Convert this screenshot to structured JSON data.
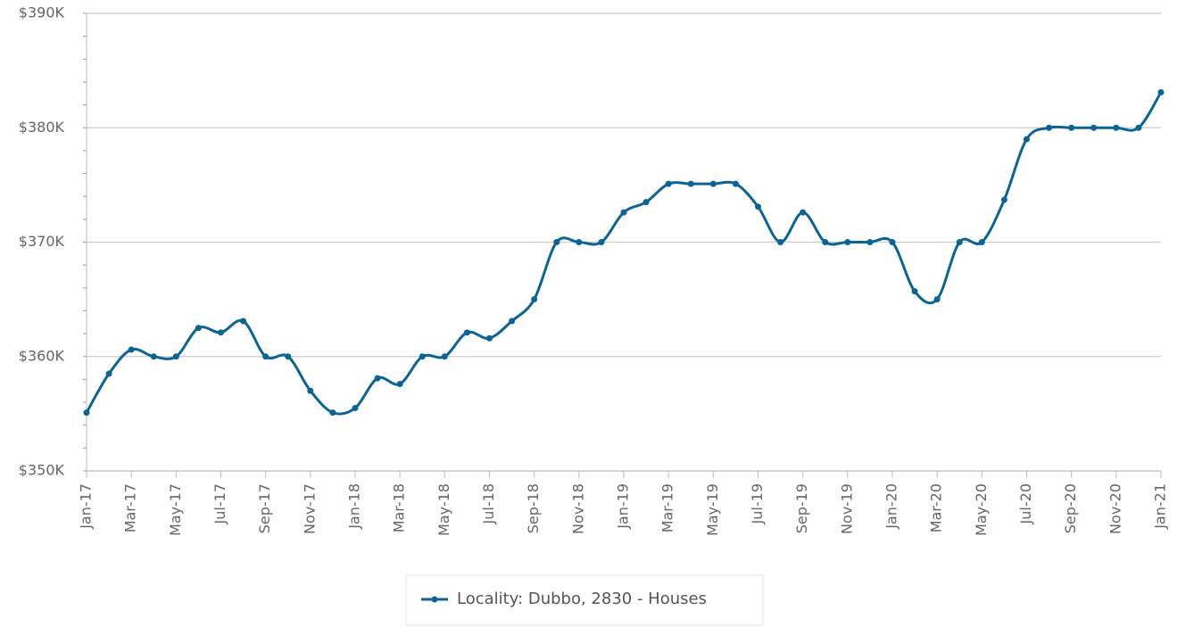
{
  "chart_data": {
    "type": "line",
    "categories": [
      "Jan-17",
      null,
      "Mar-17",
      null,
      "May-17",
      null,
      "Jul-17",
      null,
      "Sep-17",
      null,
      "Nov-17",
      null,
      "Jan-18",
      null,
      "Mar-18",
      null,
      "May-18",
      null,
      "Jul-18",
      null,
      "Sep-18",
      null,
      "Nov-18",
      null,
      "Jan-19",
      null,
      "Mar-19",
      null,
      "May-19",
      null,
      "Jul-19",
      null,
      "Sep-19",
      null,
      "Nov-19",
      null,
      "Jan-20",
      null,
      "Mar-20",
      null,
      "May-20",
      null,
      "Jul-20",
      null,
      "Sep-20",
      null,
      "Nov-20",
      null,
      "Jan-21"
    ],
    "series": [
      {
        "name": "Locality: Dubbo, 2830 - Houses",
        "color": "#0a6496",
        "values": [
          355100,
          358500,
          360600,
          360000,
          360000,
          362500,
          362100,
          363100,
          360000,
          360000,
          357000,
          355100,
          355500,
          358100,
          357600,
          360000,
          360000,
          362100,
          361600,
          363100,
          365000,
          370000,
          370000,
          370000,
          372600,
          373500,
          375100,
          375100,
          375100,
          375100,
          373100,
          370000,
          372600,
          370000,
          370000,
          370000,
          370000,
          365700,
          365000,
          370000,
          370000,
          373700,
          379000,
          380000,
          380000,
          380000,
          380000,
          380000,
          383100
        ]
      }
    ],
    "ylim": [
      350000,
      390000
    ],
    "yticks": [
      {
        "value": 350000,
        "label": "$350K"
      },
      {
        "value": 360000,
        "label": "$360K"
      },
      {
        "value": 370000,
        "label": "$370K"
      },
      {
        "value": 380000,
        "label": "$380K"
      },
      {
        "value": 390000,
        "label": "$390K"
      }
    ],
    "grid": true,
    "legend": "bottom"
  }
}
